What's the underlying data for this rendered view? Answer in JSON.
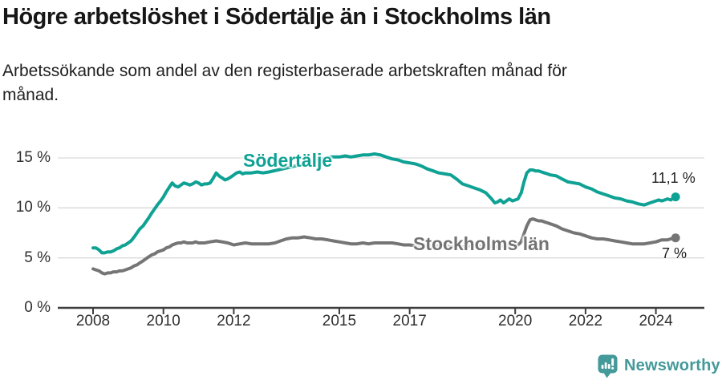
{
  "header": {
    "title": "Högre arbetslöshet i Södertälje än i Stockholms län",
    "subtitle": "Arbetssökande som andel av den registerbaserade arbetskraften månad för\nmånad."
  },
  "footer": {
    "logo_text": "Newsworthy",
    "logo_icon": "bar-chart-speech-bubble-icon",
    "brand_color": "#44999a"
  },
  "chart_data": {
    "type": "line",
    "title": "Högre arbetslöshet i Södertälje än i Stockholms län",
    "subtitle": "Arbetssökande som andel av den registerbaserade arbetskraften månad för månad.",
    "xlabel": "",
    "ylabel": "",
    "y_unit": "%",
    "x_unit": "year (monthly series)",
    "ylim": [
      0,
      16.8
    ],
    "xlim": [
      2007.6,
      2025.3
    ],
    "grid": "horizontal",
    "legend_position": "inline-labels",
    "y_ticks": [
      0,
      5,
      10,
      15
    ],
    "y_tick_labels": [
      "0 %",
      "5 %",
      "10 %",
      "15 %"
    ],
    "x_ticks": [
      2008,
      2010,
      2012,
      2015,
      2017,
      2020,
      2022,
      2024
    ],
    "x_tick_labels": [
      "2008",
      "2010",
      "2012",
      "2015",
      "2017",
      "2020",
      "2022",
      "2024"
    ],
    "series": [
      {
        "name": "Södertälje",
        "color": "#0fa294",
        "end_value": 11.1,
        "end_label": "11,1 %",
        "points": [
          [
            2008.0,
            6.0
          ],
          [
            2008.08,
            6.0
          ],
          [
            2008.17,
            5.8
          ],
          [
            2008.25,
            5.5
          ],
          [
            2008.33,
            5.5
          ],
          [
            2008.42,
            5.6
          ],
          [
            2008.5,
            5.6
          ],
          [
            2008.58,
            5.7
          ],
          [
            2008.67,
            5.9
          ],
          [
            2008.75,
            6.0
          ],
          [
            2008.83,
            6.2
          ],
          [
            2008.92,
            6.3
          ],
          [
            2009.0,
            6.5
          ],
          [
            2009.08,
            6.7
          ],
          [
            2009.17,
            7.1
          ],
          [
            2009.25,
            7.5
          ],
          [
            2009.33,
            7.9
          ],
          [
            2009.42,
            8.2
          ],
          [
            2009.5,
            8.6
          ],
          [
            2009.58,
            9.0
          ],
          [
            2009.67,
            9.5
          ],
          [
            2009.75,
            9.9
          ],
          [
            2009.83,
            10.3
          ],
          [
            2009.92,
            10.7
          ],
          [
            2010.0,
            11.1
          ],
          [
            2010.08,
            11.6
          ],
          [
            2010.17,
            12.1
          ],
          [
            2010.25,
            12.5
          ],
          [
            2010.33,
            12.2
          ],
          [
            2010.42,
            12.1
          ],
          [
            2010.5,
            12.3
          ],
          [
            2010.58,
            12.5
          ],
          [
            2010.67,
            12.4
          ],
          [
            2010.75,
            12.3
          ],
          [
            2010.83,
            12.4
          ],
          [
            2010.92,
            12.6
          ],
          [
            2011.0,
            12.5
          ],
          [
            2011.08,
            12.3
          ],
          [
            2011.17,
            12.4
          ],
          [
            2011.25,
            12.4
          ],
          [
            2011.33,
            12.5
          ],
          [
            2011.42,
            13.0
          ],
          [
            2011.5,
            13.5
          ],
          [
            2011.58,
            13.2
          ],
          [
            2011.67,
            13.0
          ],
          [
            2011.75,
            12.8
          ],
          [
            2011.83,
            12.9
          ],
          [
            2011.92,
            13.1
          ],
          [
            2012.0,
            13.3
          ],
          [
            2012.08,
            13.5
          ],
          [
            2012.17,
            13.6
          ],
          [
            2012.25,
            13.4
          ],
          [
            2012.33,
            13.5
          ],
          [
            2012.5,
            13.5
          ],
          [
            2012.67,
            13.6
          ],
          [
            2012.83,
            13.5
          ],
          [
            2013.0,
            13.6
          ],
          [
            2013.25,
            13.8
          ],
          [
            2013.5,
            14.0
          ],
          [
            2013.75,
            14.2
          ],
          [
            2014.0,
            14.4
          ],
          [
            2014.25,
            14.6
          ],
          [
            2014.5,
            14.9
          ],
          [
            2014.75,
            15.1
          ],
          [
            2015.0,
            15.1
          ],
          [
            2015.17,
            15.2
          ],
          [
            2015.33,
            15.1
          ],
          [
            2015.5,
            15.2
          ],
          [
            2015.67,
            15.3
          ],
          [
            2015.83,
            15.3
          ],
          [
            2016.0,
            15.4
          ],
          [
            2016.17,
            15.3
          ],
          [
            2016.33,
            15.1
          ],
          [
            2016.5,
            14.9
          ],
          [
            2016.67,
            14.8
          ],
          [
            2016.83,
            14.6
          ],
          [
            2017.0,
            14.5
          ],
          [
            2017.17,
            14.4
          ],
          [
            2017.33,
            14.2
          ],
          [
            2017.5,
            13.9
          ],
          [
            2017.67,
            13.7
          ],
          [
            2017.83,
            13.5
          ],
          [
            2018.0,
            13.4
          ],
          [
            2018.17,
            13.3
          ],
          [
            2018.33,
            12.9
          ],
          [
            2018.5,
            12.4
          ],
          [
            2018.67,
            12.2
          ],
          [
            2018.83,
            12.0
          ],
          [
            2019.0,
            11.8
          ],
          [
            2019.17,
            11.5
          ],
          [
            2019.33,
            10.9
          ],
          [
            2019.42,
            10.5
          ],
          [
            2019.5,
            10.6
          ],
          [
            2019.58,
            10.8
          ],
          [
            2019.67,
            10.5
          ],
          [
            2019.75,
            10.7
          ],
          [
            2019.83,
            10.9
          ],
          [
            2019.92,
            10.7
          ],
          [
            2020.0,
            10.8
          ],
          [
            2020.08,
            10.9
          ],
          [
            2020.17,
            11.5
          ],
          [
            2020.25,
            12.6
          ],
          [
            2020.33,
            13.5
          ],
          [
            2020.42,
            13.8
          ],
          [
            2020.5,
            13.8
          ],
          [
            2020.58,
            13.7
          ],
          [
            2020.67,
            13.7
          ],
          [
            2020.75,
            13.6
          ],
          [
            2020.83,
            13.5
          ],
          [
            2020.92,
            13.4
          ],
          [
            2021.0,
            13.3
          ],
          [
            2021.17,
            13.2
          ],
          [
            2021.33,
            12.9
          ],
          [
            2021.5,
            12.6
          ],
          [
            2021.67,
            12.5
          ],
          [
            2021.83,
            12.4
          ],
          [
            2022.0,
            12.1
          ],
          [
            2022.17,
            11.9
          ],
          [
            2022.33,
            11.6
          ],
          [
            2022.5,
            11.4
          ],
          [
            2022.67,
            11.2
          ],
          [
            2022.83,
            11.0
          ],
          [
            2023.0,
            10.9
          ],
          [
            2023.17,
            10.7
          ],
          [
            2023.33,
            10.6
          ],
          [
            2023.5,
            10.4
          ],
          [
            2023.67,
            10.3
          ],
          [
            2023.83,
            10.5
          ],
          [
            2024.0,
            10.7
          ],
          [
            2024.08,
            10.8
          ],
          [
            2024.17,
            10.7
          ],
          [
            2024.25,
            10.8
          ],
          [
            2024.33,
            10.9
          ],
          [
            2024.42,
            10.8
          ],
          [
            2024.56,
            11.1
          ]
        ]
      },
      {
        "name": "Stockholms län",
        "color": "#757575",
        "end_value": 7.0,
        "end_label": "7 %",
        "points": [
          [
            2008.0,
            3.9
          ],
          [
            2008.08,
            3.8
          ],
          [
            2008.17,
            3.7
          ],
          [
            2008.25,
            3.5
          ],
          [
            2008.33,
            3.4
          ],
          [
            2008.42,
            3.5
          ],
          [
            2008.5,
            3.5
          ],
          [
            2008.58,
            3.6
          ],
          [
            2008.67,
            3.6
          ],
          [
            2008.75,
            3.7
          ],
          [
            2008.83,
            3.7
          ],
          [
            2008.92,
            3.8
          ],
          [
            2009.0,
            3.9
          ],
          [
            2009.08,
            4.0
          ],
          [
            2009.17,
            4.2
          ],
          [
            2009.25,
            4.3
          ],
          [
            2009.33,
            4.5
          ],
          [
            2009.42,
            4.7
          ],
          [
            2009.5,
            4.9
          ],
          [
            2009.58,
            5.1
          ],
          [
            2009.67,
            5.3
          ],
          [
            2009.75,
            5.4
          ],
          [
            2009.83,
            5.6
          ],
          [
            2009.92,
            5.7
          ],
          [
            2010.0,
            5.8
          ],
          [
            2010.08,
            6.0
          ],
          [
            2010.17,
            6.1
          ],
          [
            2010.25,
            6.3
          ],
          [
            2010.33,
            6.4
          ],
          [
            2010.42,
            6.5
          ],
          [
            2010.5,
            6.5
          ],
          [
            2010.58,
            6.6
          ],
          [
            2010.67,
            6.5
          ],
          [
            2010.75,
            6.5
          ],
          [
            2010.83,
            6.5
          ],
          [
            2010.92,
            6.6
          ],
          [
            2011.0,
            6.5
          ],
          [
            2011.17,
            6.5
          ],
          [
            2011.33,
            6.6
          ],
          [
            2011.5,
            6.7
          ],
          [
            2011.67,
            6.6
          ],
          [
            2011.83,
            6.5
          ],
          [
            2012.0,
            6.3
          ],
          [
            2012.17,
            6.4
          ],
          [
            2012.33,
            6.5
          ],
          [
            2012.5,
            6.4
          ],
          [
            2012.67,
            6.4
          ],
          [
            2012.83,
            6.4
          ],
          [
            2013.0,
            6.4
          ],
          [
            2013.17,
            6.5
          ],
          [
            2013.33,
            6.7
          ],
          [
            2013.5,
            6.9
          ],
          [
            2013.67,
            7.0
          ],
          [
            2013.83,
            7.0
          ],
          [
            2014.0,
            7.1
          ],
          [
            2014.17,
            7.0
          ],
          [
            2014.33,
            6.9
          ],
          [
            2014.5,
            6.9
          ],
          [
            2014.67,
            6.8
          ],
          [
            2014.83,
            6.7
          ],
          [
            2015.0,
            6.6
          ],
          [
            2015.17,
            6.5
          ],
          [
            2015.33,
            6.4
          ],
          [
            2015.5,
            6.4
          ],
          [
            2015.67,
            6.5
          ],
          [
            2015.83,
            6.4
          ],
          [
            2016.0,
            6.5
          ],
          [
            2016.17,
            6.5
          ],
          [
            2016.33,
            6.5
          ],
          [
            2016.5,
            6.5
          ],
          [
            2016.67,
            6.4
          ],
          [
            2016.83,
            6.3
          ],
          [
            2017.0,
            6.3
          ],
          [
            2017.17,
            6.2
          ],
          [
            2017.33,
            6.2
          ],
          [
            2017.5,
            6.2
          ],
          [
            2017.67,
            6.1
          ],
          [
            2017.83,
            6.2
          ],
          [
            2018.0,
            6.2
          ],
          [
            2018.17,
            6.1
          ],
          [
            2018.33,
            6.1
          ],
          [
            2018.5,
            6.1
          ],
          [
            2018.67,
            6.2
          ],
          [
            2018.83,
            6.2
          ],
          [
            2019.0,
            6.2
          ],
          [
            2019.17,
            6.1
          ],
          [
            2019.33,
            6.1
          ],
          [
            2019.5,
            6.1
          ],
          [
            2019.67,
            6.2
          ],
          [
            2019.83,
            6.2
          ],
          [
            2020.0,
            6.2
          ],
          [
            2020.08,
            6.3
          ],
          [
            2020.17,
            6.6
          ],
          [
            2020.25,
            7.4
          ],
          [
            2020.33,
            8.2
          ],
          [
            2020.42,
            8.8
          ],
          [
            2020.5,
            8.9
          ],
          [
            2020.58,
            8.8
          ],
          [
            2020.67,
            8.7
          ],
          [
            2020.75,
            8.7
          ],
          [
            2020.83,
            8.6
          ],
          [
            2020.92,
            8.5
          ],
          [
            2021.0,
            8.4
          ],
          [
            2021.17,
            8.2
          ],
          [
            2021.33,
            7.9
          ],
          [
            2021.5,
            7.7
          ],
          [
            2021.67,
            7.5
          ],
          [
            2021.83,
            7.4
          ],
          [
            2022.0,
            7.2
          ],
          [
            2022.17,
            7.0
          ],
          [
            2022.33,
            6.9
          ],
          [
            2022.5,
            6.9
          ],
          [
            2022.67,
            6.8
          ],
          [
            2022.83,
            6.7
          ],
          [
            2023.0,
            6.6
          ],
          [
            2023.17,
            6.5
          ],
          [
            2023.33,
            6.4
          ],
          [
            2023.5,
            6.4
          ],
          [
            2023.67,
            6.4
          ],
          [
            2023.83,
            6.5
          ],
          [
            2024.0,
            6.6
          ],
          [
            2024.17,
            6.8
          ],
          [
            2024.33,
            6.8
          ],
          [
            2024.42,
            6.9
          ],
          [
            2024.56,
            7.0
          ]
        ]
      }
    ]
  }
}
